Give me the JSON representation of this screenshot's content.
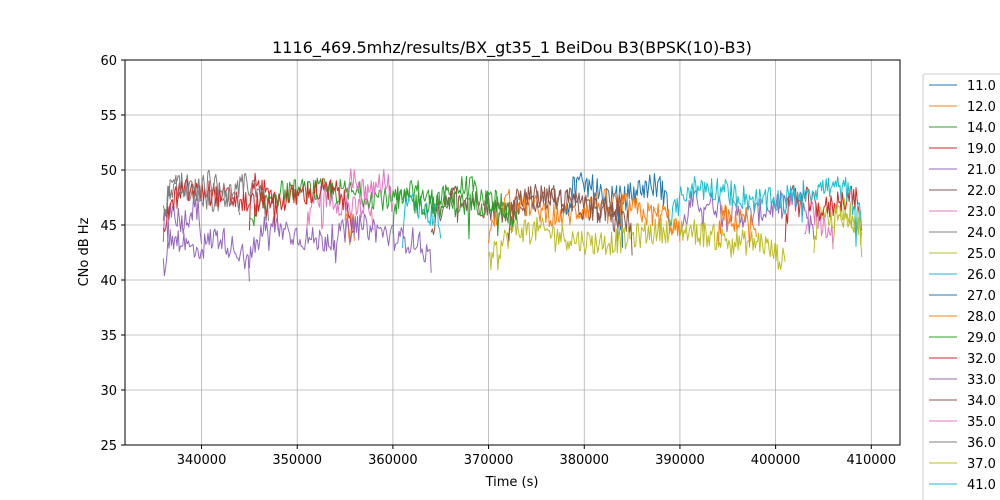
{
  "chart_data": {
    "type": "line",
    "title": "1116_469.5mhz/results/BX_gt35_1 BeiDou B3(BPSK(10)-B3)",
    "xlabel": "Time (s)",
    "ylabel": "CNo dB Hz",
    "xlim": [
      332000,
      413000
    ],
    "ylim": [
      25,
      60
    ],
    "xticks": [
      340000,
      350000,
      360000,
      370000,
      380000,
      390000,
      400000,
      410000
    ],
    "yticks": [
      25,
      30,
      35,
      40,
      45,
      50,
      55,
      60
    ],
    "grid": true,
    "legend_position": "right-outside",
    "series": [
      {
        "name": "11.0",
        "color": "#1f77b4",
        "segments": [
          [
            383500,
            384000,
            45.5
          ]
        ]
      },
      {
        "name": "12.0",
        "color": "#ff7f0e",
        "segments": [
          [
            355000,
            356000,
            45.0
          ]
        ]
      },
      {
        "name": "14.0",
        "color": "#2ca02c",
        "segments": [
          [
            360000,
            372000,
            47.8
          ]
        ]
      },
      {
        "name": "19.0",
        "color": "#d62728",
        "segments": [
          [
            345000,
            348000,
            48.0
          ]
        ]
      },
      {
        "name": "21.0",
        "color": "#9467bd",
        "segments": [
          [
            336000,
            340000,
            46.0
          ],
          [
            390000,
            404000,
            46.5
          ]
        ]
      },
      {
        "name": "22.0",
        "color": "#8c564b",
        "segments": [
          [
            364000,
            384000,
            47.0
          ]
        ]
      },
      {
        "name": "23.0",
        "color": "#e377c2",
        "segments": [
          [
            351000,
            358000,
            47.0
          ],
          [
            403000,
            406000,
            45.5
          ]
        ]
      },
      {
        "name": "24.0",
        "color": "#7f7f7f",
        "segments": [
          [
            336000,
            347000,
            48.0
          ]
        ]
      },
      {
        "name": "25.0",
        "color": "#bcbd22",
        "segments": [
          [
            370000,
            401000,
            44.0
          ],
          [
            404000,
            409000,
            46.0
          ]
        ]
      },
      {
        "name": "26.0",
        "color": "#17becf",
        "segments": [
          [
            361000,
            365000,
            46.5
          ]
        ]
      },
      {
        "name": "27.0",
        "color": "#1f77b4",
        "segments": [
          [
            378000,
            389000,
            48.0
          ]
        ]
      },
      {
        "name": "28.0",
        "color": "#ff7f0e",
        "segments": [
          [
            370000,
            390000,
            46.5
          ],
          [
            394000,
            398000,
            45.5
          ]
        ]
      },
      {
        "name": "29.0",
        "color": "#2ca02c",
        "segments": [
          [
            345000,
            373000,
            47.5
          ]
        ]
      },
      {
        "name": "32.0",
        "color": "#d62728",
        "segments": [
          [
            336000,
            356000,
            47.5
          ],
          [
            401000,
            409000,
            47.0
          ]
        ]
      },
      {
        "name": "33.0",
        "color": "#9467bd",
        "segments": [
          [
            336000,
            345000,
            43.3
          ],
          [
            345000,
            364000,
            44.2
          ]
        ]
      },
      {
        "name": "34.0",
        "color": "#8c564b",
        "segments": [
          [
            372000,
            385000,
            47.0
          ]
        ]
      },
      {
        "name": "35.0",
        "color": "#e377c2",
        "segments": [
          [
            355000,
            360000,
            48.5
          ]
        ]
      },
      {
        "name": "36.0",
        "color": "#7f7f7f",
        "segments": [
          [
            336000,
            344000,
            48.3
          ]
        ]
      },
      {
        "name": "37.0",
        "color": "#bcbd22",
        "segments": [
          [
            406000,
            409000,
            45.5
          ]
        ]
      },
      {
        "name": "41.0",
        "color": "#17becf",
        "segments": [
          [
            389000,
            409000,
            47.8
          ]
        ]
      }
    ],
    "legend_cutoff": "42.0"
  }
}
